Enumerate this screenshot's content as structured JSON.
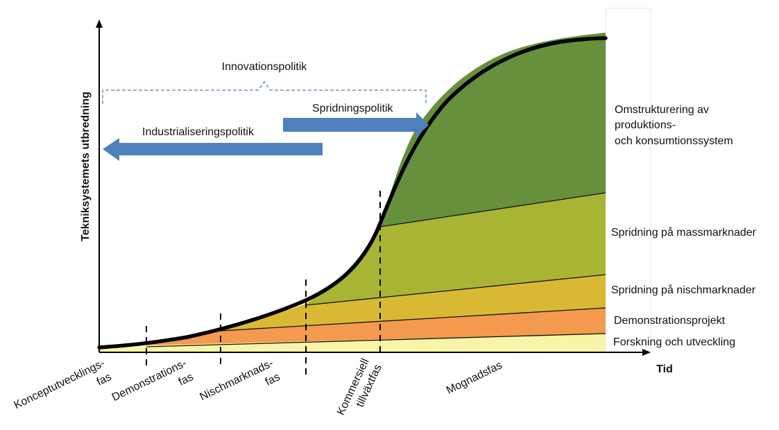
{
  "y_axis_label": "Tekniksystemets utbredning",
  "x_axis_label": "Tid",
  "policies": {
    "innovation": "Innovationspolitik",
    "spridning": "Spridningspolitik",
    "industrialisering": "Industrialiseringspolitik"
  },
  "layers": {
    "omstrukturering": [
      "Omstrukturering av",
      "produktions-",
      "och konsumtionssystem"
    ],
    "massmarknader": "Spridning på massmarknader",
    "nischmarknader": "Spridning på nischmarknader",
    "demonstration": "Demonstrationsprojekt",
    "forskning": "Forskning och utveckling"
  },
  "phases": {
    "konceptutveckling": [
      "Konceptutvecklings-",
      "fas"
    ],
    "demonstration": [
      "Demonstrations-",
      "fas"
    ],
    "nischmarknad": [
      "Nischmarknads-",
      "fas"
    ],
    "kommersiell": [
      "Kommersiell",
      "tillväxtfas"
    ],
    "mognad": "Mognadsfas"
  },
  "colors": {
    "forskning": "#f8f4a8",
    "demonstration": "#f39a4f",
    "nisch": "#d9b934",
    "mass": "#a9b434",
    "omstrukturering": "#66903c",
    "arrow": "#4f81bd",
    "bracket": "#4f81bd"
  }
}
